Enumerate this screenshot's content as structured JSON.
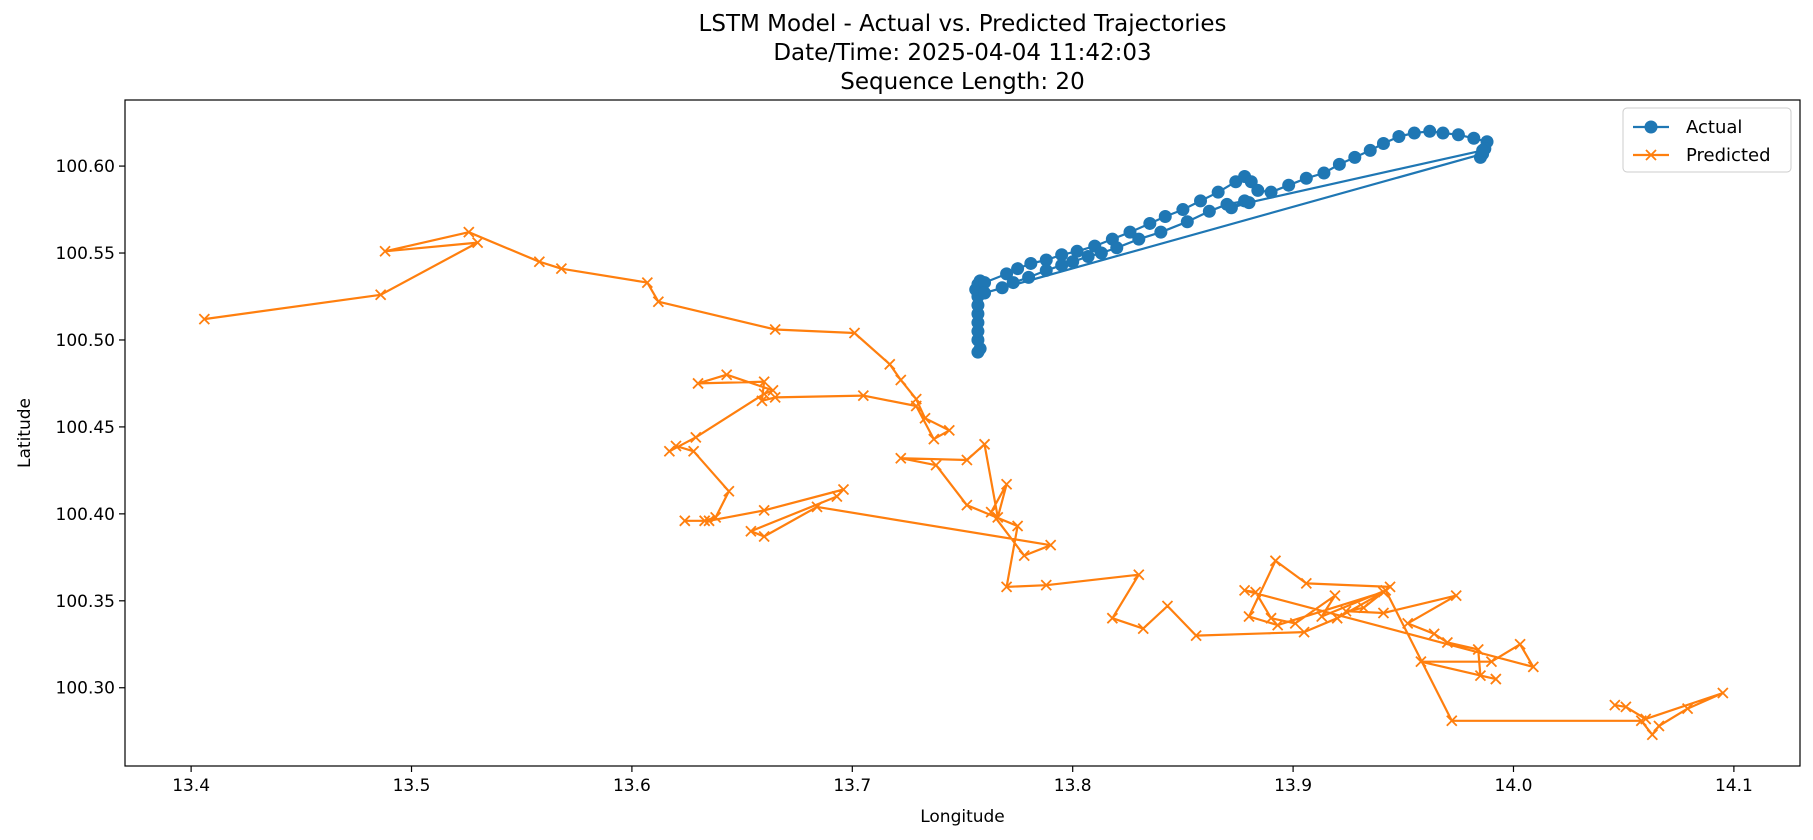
{
  "chart_data": {
    "type": "line",
    "title": "LSTM Model - Actual vs. Predicted Trajectories",
    "subtitle_lines": [
      "Date/Time: 2025-04-04 11:42:03",
      "Sequence Length: 20"
    ],
    "xlabel": "Longitude",
    "ylabel": "Latitude",
    "xlim": [
      13.37,
      14.13
    ],
    "ylim": [
      100.255,
      100.638
    ],
    "xticks": [
      13.4,
      13.5,
      13.6,
      13.7,
      13.8,
      13.9,
      14.0,
      14.1
    ],
    "xtick_labels": [
      "13.4",
      "13.5",
      "13.6",
      "13.7",
      "13.8",
      "13.9",
      "14.0",
      "14.1"
    ],
    "yticks": [
      100.3,
      100.35,
      100.4,
      100.45,
      100.5,
      100.55,
      100.6
    ],
    "ytick_labels": [
      "100.30",
      "100.35",
      "100.40",
      "100.45",
      "100.50",
      "100.55",
      "100.60"
    ],
    "grid": false,
    "legend_position": "top-right",
    "series": [
      {
        "name": "Actual",
        "color": "#1f77b4",
        "marker": "circle",
        "points": [
          [
            13.757,
            100.493
          ],
          [
            13.758,
            100.495
          ],
          [
            13.757,
            100.5
          ],
          [
            13.757,
            100.505
          ],
          [
            13.757,
            100.51
          ],
          [
            13.757,
            100.515
          ],
          [
            13.757,
            100.52
          ],
          [
            13.757,
            100.525
          ],
          [
            13.756,
            100.529
          ],
          [
            13.757,
            100.532
          ],
          [
            13.758,
            100.534
          ],
          [
            13.76,
            100.533
          ],
          [
            13.77,
            100.538
          ],
          [
            13.775,
            100.541
          ],
          [
            13.781,
            100.544
          ],
          [
            13.788,
            100.546
          ],
          [
            13.795,
            100.549
          ],
          [
            13.802,
            100.551
          ],
          [
            13.81,
            100.554
          ],
          [
            13.818,
            100.558
          ],
          [
            13.826,
            100.562
          ],
          [
            13.835,
            100.567
          ],
          [
            13.842,
            100.571
          ],
          [
            13.85,
            100.575
          ],
          [
            13.858,
            100.58
          ],
          [
            13.866,
            100.585
          ],
          [
            13.874,
            100.591
          ],
          [
            13.878,
            100.594
          ],
          [
            13.881,
            100.591
          ],
          [
            13.884,
            100.586
          ],
          [
            13.89,
            100.585
          ],
          [
            13.898,
            100.589
          ],
          [
            13.906,
            100.593
          ],
          [
            13.914,
            100.596
          ],
          [
            13.921,
            100.601
          ],
          [
            13.928,
            100.605
          ],
          [
            13.935,
            100.609
          ],
          [
            13.941,
            100.613
          ],
          [
            13.948,
            100.617
          ],
          [
            13.955,
            100.619
          ],
          [
            13.962,
            100.62
          ],
          [
            13.968,
            100.619
          ],
          [
            13.975,
            100.618
          ],
          [
            13.982,
            100.616
          ],
          [
            13.988,
            100.614
          ],
          [
            13.987,
            100.61
          ],
          [
            13.985,
            100.605
          ],
          [
            13.986,
            100.607
          ],
          [
            13.76,
            100.527
          ],
          [
            13.768,
            100.53
          ],
          [
            13.773,
            100.533
          ],
          [
            13.78,
            100.536
          ],
          [
            13.788,
            100.54
          ],
          [
            13.795,
            100.543
          ],
          [
            13.8,
            100.545
          ],
          [
            13.807,
            100.548
          ],
          [
            13.813,
            100.55
          ],
          [
            13.82,
            100.553
          ],
          [
            13.83,
            100.558
          ],
          [
            13.84,
            100.562
          ],
          [
            13.852,
            100.568
          ],
          [
            13.862,
            100.574
          ],
          [
            13.87,
            100.578
          ],
          [
            13.878,
            100.58
          ],
          [
            13.872,
            100.576
          ],
          [
            13.88,
            100.579
          ],
          [
            13.986,
            100.609
          ]
        ]
      },
      {
        "name": "Predicted",
        "color": "#ff7f0e",
        "marker": "x",
        "points": [
          [
            13.406,
            100.512
          ],
          [
            13.486,
            100.526
          ],
          [
            13.53,
            100.556
          ],
          [
            13.488,
            100.551
          ],
          [
            13.526,
            100.562
          ],
          [
            13.558,
            100.545
          ],
          [
            13.568,
            100.541
          ],
          [
            13.607,
            100.533
          ],
          [
            13.612,
            100.522
          ],
          [
            13.665,
            100.506
          ],
          [
            13.701,
            100.504
          ],
          [
            13.717,
            100.486
          ],
          [
            13.722,
            100.477
          ],
          [
            13.729,
            100.466
          ],
          [
            13.733,
            100.455
          ],
          [
            13.744,
            100.448
          ],
          [
            13.737,
            100.443
          ],
          [
            13.729,
            100.462
          ],
          [
            13.705,
            100.468
          ],
          [
            13.665,
            100.467
          ],
          [
            13.659,
            100.465
          ],
          [
            13.66,
            100.476
          ],
          [
            13.63,
            100.475
          ],
          [
            13.643,
            100.48
          ],
          [
            13.664,
            100.471
          ],
          [
            13.66,
            100.469
          ],
          [
            13.629,
            100.444
          ],
          [
            13.617,
            100.436
          ],
          [
            13.62,
            100.439
          ],
          [
            13.628,
            100.436
          ],
          [
            13.644,
            100.413
          ],
          [
            13.638,
            100.398
          ],
          [
            13.633,
            100.396
          ],
          [
            13.624,
            100.396
          ],
          [
            13.635,
            100.396
          ],
          [
            13.66,
            100.402
          ],
          [
            13.696,
            100.414
          ],
          [
            13.693,
            100.41
          ],
          [
            13.654,
            100.39
          ],
          [
            13.66,
            100.387
          ],
          [
            13.684,
            100.404
          ],
          [
            13.79,
            100.382
          ],
          [
            13.778,
            100.376
          ],
          [
            13.763,
            100.401
          ],
          [
            13.77,
            100.417
          ],
          [
            13.766,
            100.398
          ],
          [
            13.76,
            100.44
          ],
          [
            13.752,
            100.431
          ],
          [
            13.722,
            100.432
          ],
          [
            13.738,
            100.428
          ],
          [
            13.752,
            100.405
          ],
          [
            13.775,
            100.393
          ],
          [
            13.77,
            100.358
          ],
          [
            13.788,
            100.359
          ],
          [
            13.83,
            100.365
          ],
          [
            13.818,
            100.34
          ],
          [
            13.832,
            100.334
          ],
          [
            13.843,
            100.347
          ],
          [
            13.856,
            100.33
          ],
          [
            13.905,
            100.332
          ],
          [
            13.92,
            100.34
          ],
          [
            13.941,
            100.355
          ],
          [
            13.893,
            100.336
          ],
          [
            13.88,
            100.341
          ],
          [
            13.892,
            100.373
          ],
          [
            13.906,
            100.36
          ],
          [
            13.944,
            100.358
          ],
          [
            13.932,
            100.346
          ],
          [
            13.924,
            100.344
          ],
          [
            13.941,
            100.343
          ],
          [
            13.974,
            100.353
          ],
          [
            13.952,
            100.337
          ],
          [
            13.964,
            100.331
          ],
          [
            13.97,
            100.326
          ],
          [
            13.984,
            100.322
          ],
          [
            13.985,
            100.307
          ],
          [
            13.992,
            100.305
          ],
          [
            13.958,
            100.315
          ],
          [
            13.99,
            100.315
          ],
          [
            14.003,
            100.325
          ],
          [
            14.009,
            100.312
          ],
          [
            13.878,
            100.356
          ],
          [
            13.883,
            100.355
          ],
          [
            13.89,
            100.34
          ],
          [
            13.901,
            100.337
          ],
          [
            13.919,
            100.353
          ],
          [
            13.913,
            100.341
          ],
          [
            13.942,
            100.356
          ],
          [
            13.972,
            100.281
          ],
          [
            14.058,
            100.281
          ],
          [
            14.063,
            100.273
          ],
          [
            14.066,
            100.278
          ],
          [
            14.079,
            100.288
          ],
          [
            14.095,
            100.297
          ],
          [
            14.06,
            100.282
          ],
          [
            14.051,
            100.289
          ],
          [
            14.046,
            100.29
          ]
        ]
      }
    ]
  }
}
